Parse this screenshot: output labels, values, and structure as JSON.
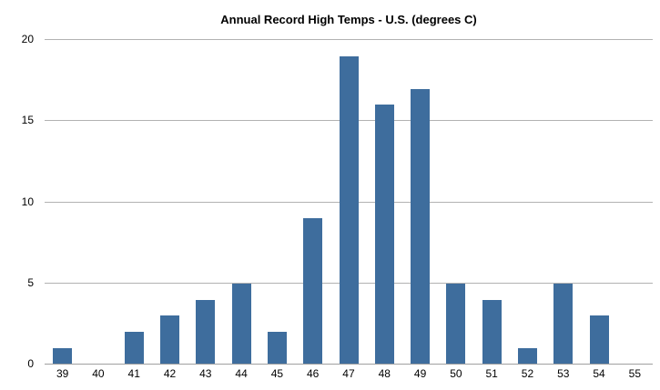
{
  "chart_data": {
    "type": "bar",
    "title": "Annual Record High Temps - U.S. (degrees C)",
    "categories": [
      "39",
      "40",
      "41",
      "42",
      "43",
      "44",
      "45",
      "46",
      "47",
      "48",
      "49",
      "50",
      "51",
      "52",
      "53",
      "54",
      "55"
    ],
    "values": [
      1,
      0,
      2,
      3,
      4,
      5,
      2,
      9,
      19,
      16,
      17,
      5,
      4,
      1,
      5,
      3,
      0
    ],
    "xlabel": "",
    "ylabel": "",
    "ylim": [
      0,
      20
    ],
    "yticks": [
      0,
      5,
      10,
      15,
      20
    ],
    "grid": true,
    "legend": false,
    "colors": {
      "bar": "#3E6D9D",
      "gridline": "#b2b2b2",
      "axis_line": "#a0a0a0",
      "text": "#000000",
      "background": "#ffffff"
    }
  }
}
